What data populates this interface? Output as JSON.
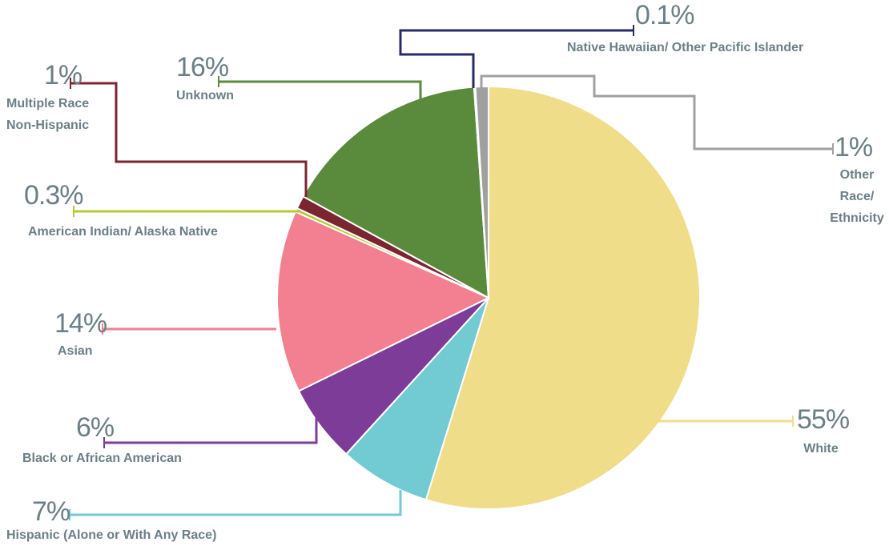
{
  "chart_data": {
    "type": "pie",
    "categories": [
      "White",
      "Hispanic (Alone or With Any Race)",
      "Black or African American",
      "Asian",
      "American Indian/ Alaska Native",
      "Multiple Race Non-Hispanic",
      "Unknown",
      "Native Hawaiian/ Other Pacific Islander",
      "Other Race/ Ethnicity"
    ],
    "values": [
      55,
      7,
      6,
      14,
      0.3,
      1,
      16,
      0.1,
      1
    ],
    "value_labels": [
      "55%",
      "7%",
      "6%",
      "14%",
      "0.3%",
      "1%",
      "16%",
      "0.1%",
      "1%"
    ],
    "colors": [
      "#efdd8a",
      "#72cad3",
      "#7d3c98",
      "#f28090",
      "#b8c830",
      "#7a2530",
      "#5a8a3c",
      "#2a2a6a",
      "#a0a0a0"
    ]
  }
}
